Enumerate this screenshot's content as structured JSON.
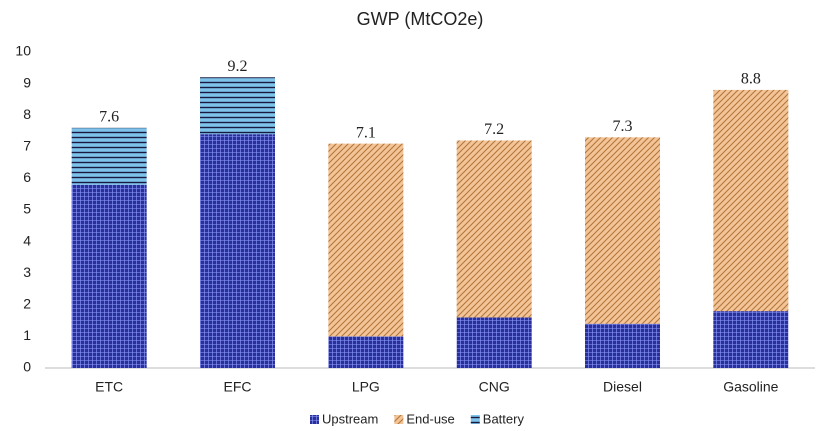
{
  "chart_data": {
    "type": "stacked-bar",
    "title": "GWP (MtCO2e)",
    "categories": [
      "ETC",
      "EFC",
      "LPG",
      "CNG",
      "Diesel",
      "Gasoline"
    ],
    "series": [
      {
        "name": "Upstream",
        "color": "#2b2f9a",
        "values": [
          5.8,
          7.4,
          1.0,
          1.6,
          1.4,
          1.8
        ]
      },
      {
        "name": "End-use",
        "color": "#f2c497",
        "values": [
          0,
          0,
          6.1,
          5.6,
          5.9,
          7.0
        ]
      },
      {
        "name": "Battery",
        "color": "#7ec3ea",
        "values": [
          1.8,
          1.8,
          0,
          0,
          0,
          0
        ]
      }
    ],
    "totals": [
      7.6,
      9.2,
      7.1,
      7.2,
      7.3,
      8.8
    ],
    "ylim": [
      0,
      10
    ],
    "yticks": [
      0,
      1,
      2,
      3,
      4,
      5,
      6,
      7,
      8,
      9,
      10
    ],
    "grid": false
  }
}
